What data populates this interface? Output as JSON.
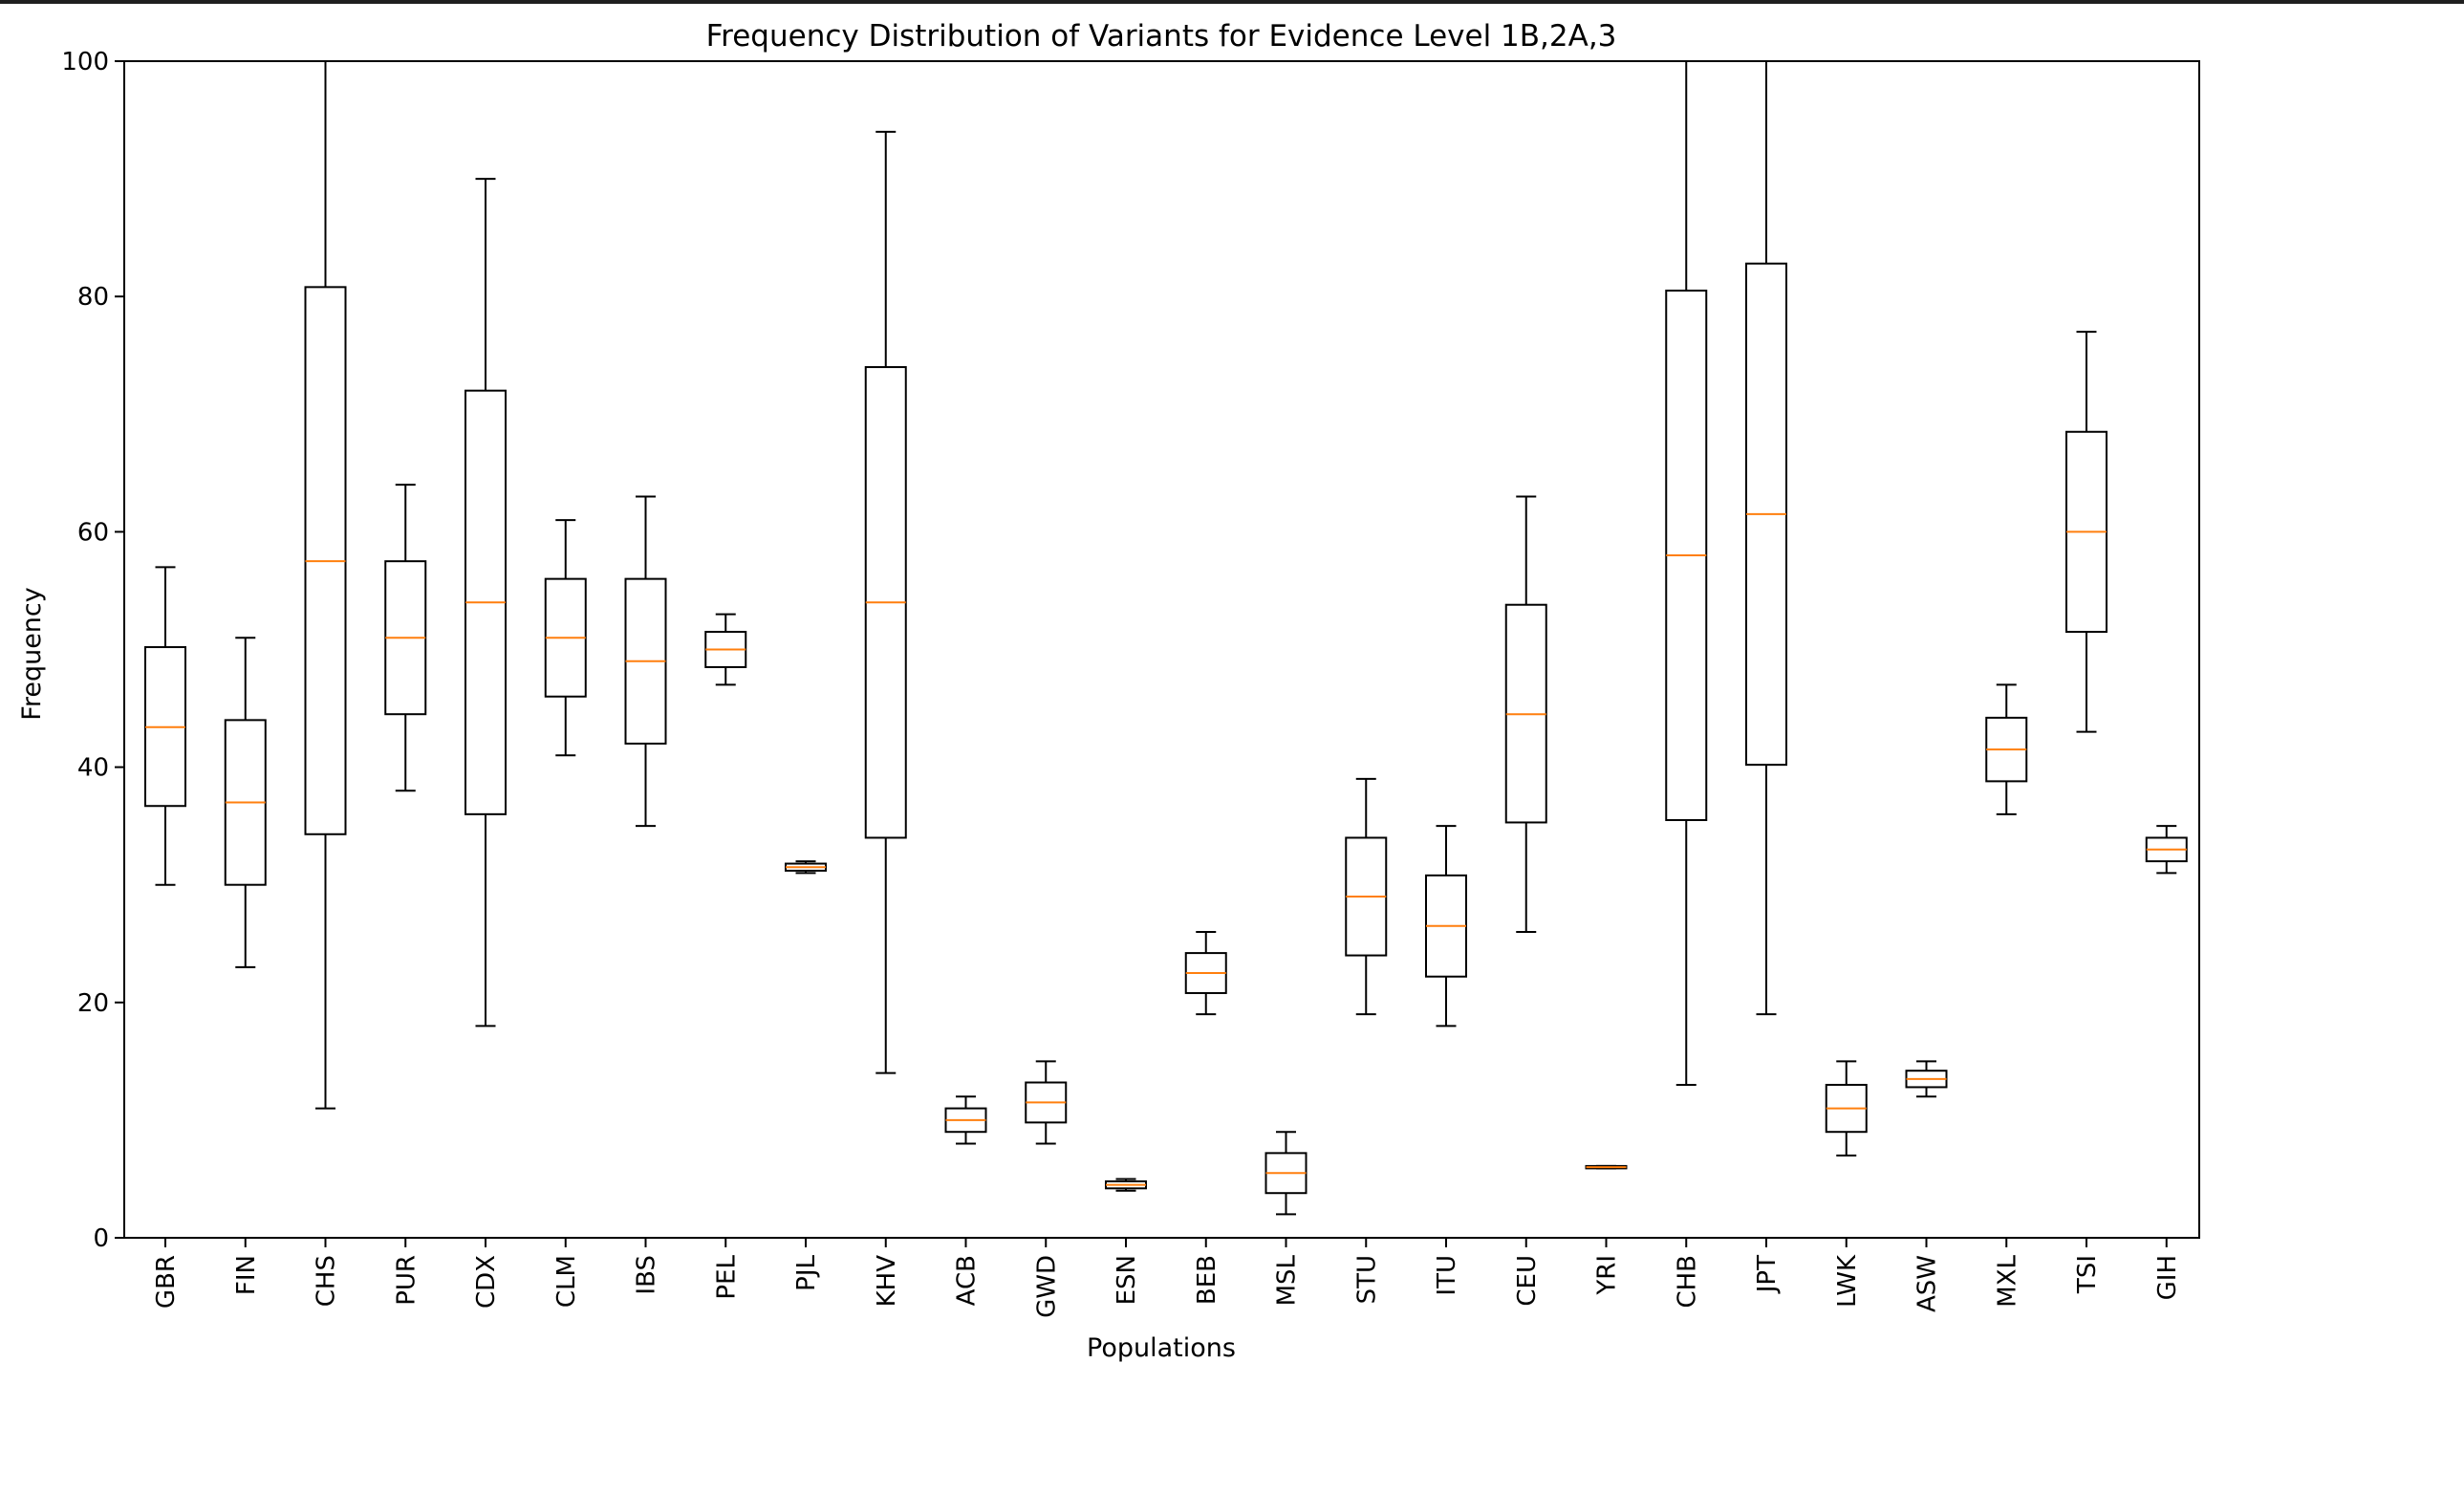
{
  "chart_data": {
    "type": "boxplot",
    "title": "Frequency Distribution of Variants for Evidence Level 1B,2A,3",
    "xlabel": "Populations",
    "ylabel": "Frequency",
    "ylim": [
      0,
      100
    ],
    "yticks": [
      0,
      20,
      40,
      60,
      80,
      100
    ],
    "grid": false,
    "legend": "none",
    "colors": {
      "box": "#000000",
      "median": "#ff7f0e",
      "background": "#ffffff"
    },
    "boxes": [
      {
        "category": "GBR",
        "whisker_low": 30,
        "q1": 36.7,
        "median": 43.4,
        "q3": 50.2,
        "whisker_high": 57
      },
      {
        "category": "FIN",
        "whisker_low": 23,
        "q1": 30,
        "median": 37,
        "q3": 44,
        "whisker_high": 51
      },
      {
        "category": "CHS",
        "whisker_low": 11,
        "q1": 34.3,
        "median": 57.5,
        "q3": 80.8,
        "whisker_high": 100
      },
      {
        "category": "PUR",
        "whisker_low": 38,
        "q1": 44.5,
        "median": 51,
        "q3": 57.5,
        "whisker_high": 64
      },
      {
        "category": "CDX",
        "whisker_low": 18,
        "q1": 36,
        "median": 54,
        "q3": 72,
        "whisker_high": 90
      },
      {
        "category": "CLM",
        "whisker_low": 41,
        "q1": 46,
        "median": 51,
        "q3": 56,
        "whisker_high": 61
      },
      {
        "category": "IBS",
        "whisker_low": 35,
        "q1": 42,
        "median": 49,
        "q3": 56,
        "whisker_high": 63
      },
      {
        "category": "PEL",
        "whisker_low": 47,
        "q1": 48.5,
        "median": 50,
        "q3": 51.5,
        "whisker_high": 53
      },
      {
        "category": "PJL",
        "whisker_low": 31,
        "q1": 31.2,
        "median": 31.5,
        "q3": 31.8,
        "whisker_high": 32
      },
      {
        "category": "KHV",
        "whisker_low": 14,
        "q1": 34,
        "median": 54,
        "q3": 74,
        "whisker_high": 94
      },
      {
        "category": "ACB",
        "whisker_low": 8,
        "q1": 9,
        "median": 10,
        "q3": 11,
        "whisker_high": 12
      },
      {
        "category": "GWD",
        "whisker_low": 8,
        "q1": 9.8,
        "median": 11.5,
        "q3": 13.2,
        "whisker_high": 15
      },
      {
        "category": "ESN",
        "whisker_low": 4,
        "q1": 4.2,
        "median": 4.5,
        "q3": 4.8,
        "whisker_high": 5
      },
      {
        "category": "BEB",
        "whisker_low": 19,
        "q1": 20.8,
        "median": 22.5,
        "q3": 24.2,
        "whisker_high": 26
      },
      {
        "category": "MSL",
        "whisker_low": 2,
        "q1": 3.8,
        "median": 5.5,
        "q3": 7.2,
        "whisker_high": 9
      },
      {
        "category": "STU",
        "whisker_low": 19,
        "q1": 24,
        "median": 29,
        "q3": 34,
        "whisker_high": 39
      },
      {
        "category": "ITU",
        "whisker_low": 18,
        "q1": 22.2,
        "median": 26.5,
        "q3": 30.8,
        "whisker_high": 35
      },
      {
        "category": "CEU",
        "whisker_low": 26,
        "q1": 35.3,
        "median": 44.5,
        "q3": 53.8,
        "whisker_high": 63
      },
      {
        "category": "YRI",
        "whisker_low": 5.9,
        "q1": 5.9,
        "median": 6,
        "q3": 6.1,
        "whisker_high": 6.1
      },
      {
        "category": "CHB",
        "whisker_low": 13,
        "q1": 35.5,
        "median": 58,
        "q3": 80.5,
        "whisker_high": 100
      },
      {
        "category": "JPT",
        "whisker_low": 19,
        "q1": 40.2,
        "median": 61.5,
        "q3": 82.8,
        "whisker_high": 100
      },
      {
        "category": "LWK",
        "whisker_low": 7,
        "q1": 9,
        "median": 11,
        "q3": 13,
        "whisker_high": 15
      },
      {
        "category": "ASW",
        "whisker_low": 12,
        "q1": 12.8,
        "median": 13.5,
        "q3": 14.2,
        "whisker_high": 15
      },
      {
        "category": "MXL",
        "whisker_low": 36,
        "q1": 38.8,
        "median": 41.5,
        "q3": 44.2,
        "whisker_high": 47
      },
      {
        "category": "TSI",
        "whisker_low": 43,
        "q1": 51.5,
        "median": 60,
        "q3": 68.5,
        "whisker_high": 77
      },
      {
        "category": "GIH",
        "whisker_low": 31,
        "q1": 32,
        "median": 33,
        "q3": 34,
        "whisker_high": 35
      }
    ]
  }
}
